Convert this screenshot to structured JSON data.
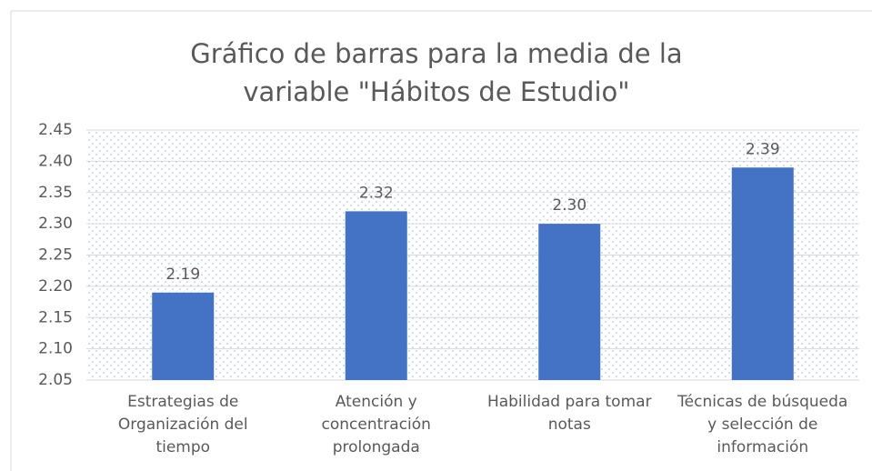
{
  "chart_data": {
    "type": "bar",
    "title": "Gráfico de barras para la media de la variable \"Hábitos de Estudio\"",
    "categories": [
      "Estrategias de Organización del tiempo",
      "Atención y concentración prolongada",
      "Habilidad para tomar notas",
      "Técnicas de búsqueda y selección de información"
    ],
    "values": [
      2.19,
      2.32,
      2.3,
      2.39
    ],
    "value_labels": [
      "2.19",
      "2.32",
      "2.30",
      "2.39"
    ],
    "color": "#4472c4",
    "ylim": [
      2.05,
      2.45
    ],
    "yticks": [
      {
        "value": 2.05,
        "label": "2.05"
      },
      {
        "value": 2.1,
        "label": "2.10"
      },
      {
        "value": 2.15,
        "label": "2.15"
      },
      {
        "value": 2.2,
        "label": "2.20"
      },
      {
        "value": 2.25,
        "label": "2.25"
      },
      {
        "value": 2.3,
        "label": "2.30"
      },
      {
        "value": 2.35,
        "label": "2.35"
      },
      {
        "value": 2.4,
        "label": "2.40"
      },
      {
        "value": 2.45,
        "label": "2.45"
      }
    ],
    "grid": true
  }
}
